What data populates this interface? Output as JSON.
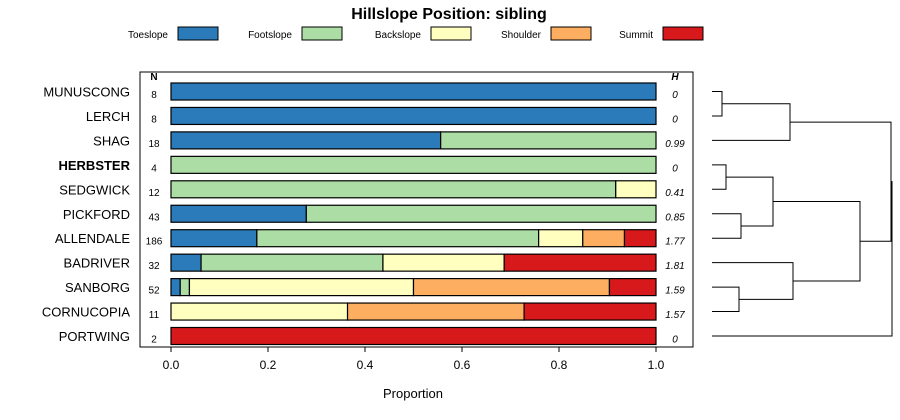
{
  "chart_data": {
    "type": "bar",
    "stacked": true,
    "orientation": "horizontal",
    "title": "Hillslope Position: sibling",
    "xlabel": "Proportion",
    "xlim": [
      0,
      1
    ],
    "xticks": [
      "0.0",
      "0.2",
      "0.4",
      "0.6",
      "0.8",
      "1.0"
    ],
    "highlight": "HERBSTER",
    "n_header": "N",
    "h_header": "H",
    "legend": [
      {
        "name": "Toeslope",
        "color": "#2b7bba"
      },
      {
        "name": "Footslope",
        "color": "#abdda4"
      },
      {
        "name": "Backslope",
        "color": "#ffffbf"
      },
      {
        "name": "Shoulder",
        "color": "#fdae61"
      },
      {
        "name": "Summit",
        "color": "#d7191c"
      }
    ],
    "rows": [
      {
        "label": "MUNUSCONG",
        "n": "8",
        "h": "0",
        "values": [
          1.0,
          0,
          0,
          0,
          0
        ]
      },
      {
        "label": "LERCH",
        "n": "8",
        "h": "0",
        "values": [
          1.0,
          0,
          0,
          0,
          0
        ]
      },
      {
        "label": "SHAG",
        "n": "18",
        "h": "0.99",
        "values": [
          0.556,
          0.444,
          0,
          0,
          0
        ]
      },
      {
        "label": "HERBSTER",
        "n": "4",
        "h": "0",
        "values": [
          0,
          1.0,
          0,
          0,
          0
        ]
      },
      {
        "label": "SEDGWICK",
        "n": "12",
        "h": "0.41",
        "values": [
          0,
          0.917,
          0.083,
          0,
          0
        ]
      },
      {
        "label": "PICKFORD",
        "n": "43",
        "h": "0.85",
        "values": [
          0.279,
          0.721,
          0,
          0,
          0
        ]
      },
      {
        "label": "ALLENDALE",
        "n": "186",
        "h": "1.77",
        "values": [
          0.177,
          0.581,
          0.091,
          0.086,
          0.065
        ]
      },
      {
        "label": "BADRIVER",
        "n": "32",
        "h": "1.81",
        "values": [
          0.062,
          0.375,
          0.25,
          0,
          0.313
        ]
      },
      {
        "label": "SANBORG",
        "n": "52",
        "h": "1.59",
        "values": [
          0.019,
          0.019,
          0.462,
          0.404,
          0.096
        ]
      },
      {
        "label": "CORNUCOPIA",
        "n": "11",
        "h": "1.57",
        "values": [
          0,
          0,
          0.364,
          0.364,
          0.272
        ]
      },
      {
        "label": "PORTWING",
        "n": "2",
        "h": "0",
        "values": [
          0,
          0,
          0,
          0,
          1.0
        ]
      }
    ],
    "grid": false,
    "legend_placement": "top",
    "dendrogram": "right"
  }
}
